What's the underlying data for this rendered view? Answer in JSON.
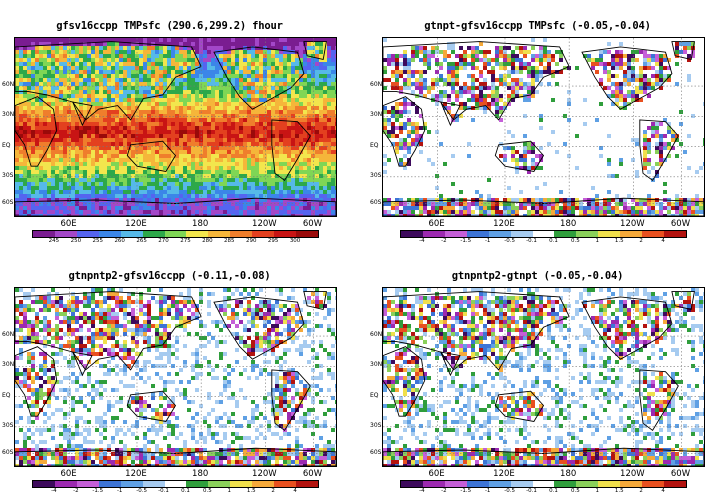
{
  "panels": [
    {
      "title": "gfsv16ccpp  TMPsfc  (290.6,299.2)  fhour",
      "type": "abs",
      "colorbar": {
        "labels": [
          "245",
          "250",
          "255",
          "260",
          "265",
          "270",
          "275",
          "280",
          "285",
          "290",
          "295",
          "300"
        ],
        "colors": [
          "#7a1d91",
          "#a347c8",
          "#5564f0",
          "#3b86e8",
          "#56b9e8",
          "#2da84a",
          "#7fd655",
          "#f2e64d",
          "#f5b63a",
          "#ef7e2c",
          "#e3401f",
          "#c81414",
          "#9a0a0a"
        ]
      }
    },
    {
      "title": "gtnpt-gfsv16ccpp  TMPsfc  (-0.05,-0.04)",
      "type": "diff",
      "colorbar": {
        "labels": [
          "-4",
          "-2",
          "-1.5",
          "-1",
          "-0.5",
          "-0.1",
          "0.1",
          "0.5",
          "1",
          "1.5",
          "2",
          "4"
        ],
        "colors": [
          "#3d0a5c",
          "#9c29b0",
          "#c55fd8",
          "#3d74d6",
          "#5fa0e4",
          "#a6cbf0",
          "#ffffff",
          "#2f9e3c",
          "#8ad05a",
          "#f0e04c",
          "#f5a93a",
          "#e8501f",
          "#b3130f"
        ]
      }
    },
    {
      "title": "gtnpntp2-gfsv16ccpp  (-0.11,-0.08)",
      "type": "diff",
      "colorbar": {
        "labels": [
          "-4",
          "-2",
          "-1.5",
          "-1",
          "-0.5",
          "-0.1",
          "0.1",
          "0.5",
          "1",
          "1.5",
          "2",
          "4"
        ],
        "colors": [
          "#3d0a5c",
          "#9c29b0",
          "#c55fd8",
          "#3d74d6",
          "#5fa0e4",
          "#a6cbf0",
          "#ffffff",
          "#2f9e3c",
          "#8ad05a",
          "#f0e04c",
          "#f5a93a",
          "#e8501f",
          "#b3130f"
        ]
      }
    },
    {
      "title": "gtnpntp2-gtnpt  (-0.05,-0.04)",
      "type": "diff",
      "colorbar": {
        "labels": [
          "-4",
          "-2",
          "-1.5",
          "-1",
          "-0.5",
          "-0.1",
          "0.1",
          "0.5",
          "1",
          "1.5",
          "2",
          "4"
        ],
        "colors": [
          "#3d0a5c",
          "#9c29b0",
          "#c55fd8",
          "#3d74d6",
          "#5fa0e4",
          "#a6cbf0",
          "#ffffff",
          "#2f9e3c",
          "#8ad05a",
          "#f0e04c",
          "#f5a93a",
          "#e8501f",
          "#b3130f"
        ]
      }
    }
  ],
  "lat_labels": [
    "60N",
    "30N",
    "EQ",
    "30S",
    "60S"
  ],
  "lon_labels": [
    "60E",
    "120E",
    "180",
    "120W",
    "60W"
  ]
}
